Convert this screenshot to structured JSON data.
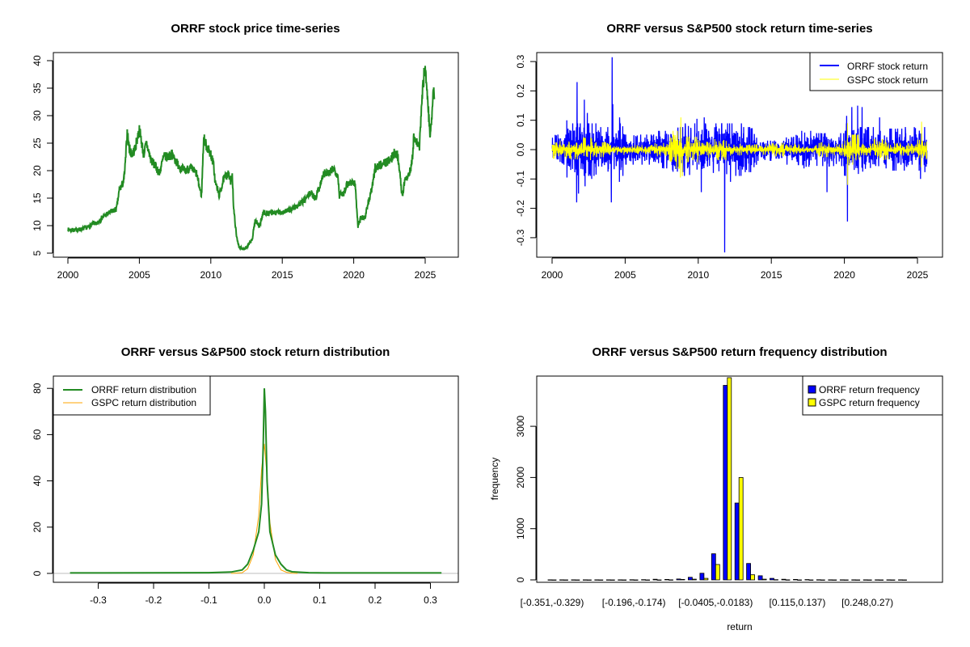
{
  "chart_data": [
    {
      "type": "line",
      "title": "ORRF stock price time-series",
      "xlabel": "",
      "ylabel": "",
      "xlim": [
        2000,
        2025.7
      ],
      "ylim": [
        5,
        40
      ],
      "x_ticks": [
        "2000",
        "2005",
        "2010",
        "2015",
        "2020",
        "2025"
      ],
      "y_ticks": [
        "5",
        "10",
        "15",
        "20",
        "25",
        "30",
        "35",
        "40"
      ],
      "color": "#228B22",
      "grid": false,
      "series": [
        {
          "x": [
            2000.0,
            2000.5,
            2001.0,
            2001.5,
            2001.8,
            2002.0,
            2002.4,
            2002.7,
            2003.0,
            2003.4,
            2003.6,
            2003.9,
            2004.0,
            2004.15,
            2004.3,
            2004.5,
            2004.7,
            2005.0,
            2005.3,
            2005.5,
            2005.8,
            2006.2,
            2006.4,
            2006.7,
            2007.0,
            2007.3,
            2007.6,
            2007.9,
            2008.2,
            2008.5,
            2008.8,
            2009.0,
            2009.2,
            2009.35,
            2009.5,
            2009.7,
            2010.0,
            2010.2,
            2010.3,
            2010.6,
            2010.9,
            2011.2,
            2011.4,
            2011.5,
            2011.6,
            2011.8,
            2012.0,
            2012.3,
            2012.6,
            2012.9,
            2013.1,
            2013.4,
            2013.7,
            2014.0,
            2014.5,
            2015.0,
            2015.5,
            2016.0,
            2016.5,
            2017.0,
            2017.3,
            2017.6,
            2017.9,
            2018.3,
            2018.6,
            2018.9,
            2019.0,
            2019.3,
            2019.5,
            2019.9,
            2020.1,
            2020.3,
            2020.5,
            2020.8,
            2021.0,
            2021.3,
            2021.5,
            2021.8,
            2022.2,
            2022.6,
            2022.9,
            2023.1,
            2023.3,
            2023.4,
            2023.6,
            2023.9,
            2024.1,
            2024.2,
            2024.4,
            2024.6,
            2024.8,
            2025.0,
            2025.15,
            2025.35,
            2025.5,
            2025.6,
            2025.65
          ],
          "y": [
            9.3,
            9.2,
            9.4,
            9.8,
            10.5,
            10.2,
            11.5,
            12.0,
            12.5,
            13.0,
            16.5,
            18.0,
            20.5,
            27.0,
            24.0,
            23.0,
            24.0,
            27.5,
            23.0,
            25.0,
            22.0,
            20.5,
            19.5,
            22.5,
            22.5,
            23.0,
            21.5,
            20.5,
            20.0,
            20.5,
            20.0,
            19.5,
            17.0,
            15.5,
            26.0,
            24.5,
            23.0,
            21.0,
            18.0,
            15.5,
            18.5,
            19.5,
            18.0,
            19.5,
            13.0,
            8.0,
            6.0,
            5.8,
            6.3,
            7.5,
            11.0,
            10.0,
            12.5,
            12.2,
            12.3,
            12.5,
            12.8,
            13.5,
            14.5,
            16.0,
            15.0,
            17.0,
            19.5,
            19.5,
            20.5,
            19.0,
            15.5,
            16.0,
            17.5,
            18.0,
            17.5,
            10.0,
            11.5,
            11.5,
            14.0,
            17.0,
            20.5,
            21.0,
            21.5,
            22.0,
            23.5,
            22.5,
            17.5,
            15.5,
            18.5,
            19.5,
            22.0,
            26.0,
            25.0,
            24.5,
            34.0,
            39.5,
            33.5,
            26.5,
            30.5,
            35.5,
            33.0
          ]
        }
      ]
    },
    {
      "type": "line",
      "title": "ORRF versus S&P500 stock return time-series",
      "xlim": [
        2000,
        2025.7
      ],
      "ylim": [
        -0.35,
        0.32
      ],
      "x_ticks": [
        "2000",
        "2005",
        "2010",
        "2015",
        "2020",
        "2025"
      ],
      "y_ticks": [
        "-0.3",
        "-0.2",
        "-0.1",
        "0.0",
        "0.1",
        "0.2",
        "0.3"
      ],
      "legend": "top-right",
      "grid": false,
      "series": [
        {
          "name": "ORRF stock return",
          "color": "#0000FF",
          "typical_abs_return_by_year": {
            "2000": 0.02,
            "2001": 0.035,
            "2002": 0.035,
            "2003": 0.03,
            "2004": 0.035,
            "2005": 0.02,
            "2006": 0.02,
            "2007": 0.025,
            "2008": 0.03,
            "2009": 0.035,
            "2010": 0.035,
            "2011": 0.035,
            "2012": 0.035,
            "2013": 0.03,
            "2014": 0.015,
            "2015": 0.012,
            "2016": 0.02,
            "2017": 0.025,
            "2018": 0.022,
            "2019": 0.022,
            "2020": 0.035,
            "2021": 0.03,
            "2022": 0.025,
            "2023": 0.028,
            "2024": 0.03,
            "2025": 0.03
          },
          "spikes": [
            [
              2000.2,
              0.05
            ],
            [
              2001.0,
              0.1
            ],
            [
              2001.0,
              -0.095
            ],
            [
              2001.7,
              0.23
            ],
            [
              2001.68,
              -0.18
            ],
            [
              2001.8,
              -0.15
            ],
            [
              2002.2,
              0.17
            ],
            [
              2002.25,
              -0.125
            ],
            [
              2002.4,
              0.125
            ],
            [
              2002.7,
              -0.1
            ],
            [
              2003.0,
              -0.085
            ],
            [
              2004.1,
              0.315
            ],
            [
              2004.05,
              -0.18
            ],
            [
              2004.15,
              0.155
            ],
            [
              2004.6,
              -0.11
            ],
            [
              2004.6,
              0.11
            ],
            [
              2009.9,
              0.105
            ],
            [
              2010.2,
              -0.145
            ],
            [
              2010.4,
              0.11
            ],
            [
              2011.6,
              0.09
            ],
            [
              2011.8,
              -0.35
            ],
            [
              2012.2,
              -0.11
            ],
            [
              2018.8,
              -0.145
            ],
            [
              2020.15,
              0.115
            ],
            [
              2020.2,
              -0.245
            ],
            [
              2020.5,
              0.145
            ],
            [
              2020.9,
              0.15
            ],
            [
              2021.2,
              0.145
            ],
            [
              2022.4,
              0.11
            ],
            [
              2025.2,
              -0.1
            ]
          ]
        },
        {
          "name": "GSPC stock return",
          "color": "#FFFF00",
          "typical_abs_return_by_year": {
            "2000": 0.012,
            "2001": 0.013,
            "2002": 0.016,
            "2003": 0.01,
            "2004": 0.007,
            "2005": 0.006,
            "2006": 0.006,
            "2007": 0.009,
            "2008": 0.025,
            "2009": 0.017,
            "2010": 0.011,
            "2011": 0.014,
            "2012": 0.008,
            "2013": 0.007,
            "2014": 0.007,
            "2015": 0.009,
            "2016": 0.008,
            "2017": 0.004,
            "2018": 0.01,
            "2019": 0.008,
            "2020": 0.02,
            "2021": 0.008,
            "2022": 0.014,
            "2023": 0.009,
            "2024": 0.008,
            "2025": 0.013
          },
          "spikes": [
            [
              2008.8,
              0.11
            ],
            [
              2008.78,
              -0.095
            ],
            [
              2008.9,
              -0.09
            ],
            [
              2020.2,
              0.09
            ],
            [
              2020.22,
              -0.12
            ],
            [
              2025.28,
              0.095
            ],
            [
              2025.25,
              -0.06
            ]
          ]
        }
      ]
    },
    {
      "type": "line",
      "title": "ORRF versus S&P500 stock return distribution",
      "xlim": [
        -0.37,
        0.34
      ],
      "ylim": [
        0,
        80
      ],
      "x_ticks": [
        "-0.3",
        "-0.2",
        "-0.1",
        "0.0",
        "0.1",
        "0.2",
        "0.3"
      ],
      "y_ticks": [
        "0",
        "20",
        "40",
        "60",
        "80"
      ],
      "legend": "top-left",
      "grid": false,
      "series": [
        {
          "name": "ORRF return distribution",
          "color": "#228B22",
          "x": [
            -0.351,
            -0.1,
            -0.06,
            -0.04,
            -0.03,
            -0.02,
            -0.01,
            -0.005,
            -0.002,
            0,
            0.002,
            0.005,
            0.01,
            0.02,
            0.03,
            0.04,
            0.05,
            0.08,
            0.11,
            0.32
          ],
          "y": [
            0.2,
            0.3,
            0.6,
            1.5,
            4,
            10,
            18,
            30,
            55,
            80,
            70,
            40,
            18,
            8,
            4,
            1.5,
            0.7,
            0.3,
            0.2,
            0.2
          ]
        },
        {
          "name": "GSPC return distribution",
          "color": "#FFA500",
          "x": [
            -0.06,
            -0.04,
            -0.03,
            -0.02,
            -0.01,
            -0.005,
            0,
            0.005,
            0.01,
            0.02,
            0.03,
            0.04,
            0.05,
            0.06
          ],
          "y": [
            0,
            0.3,
            2,
            8,
            25,
            45,
            56,
            42,
            22,
            6,
            1.5,
            0.5,
            0.1,
            0
          ]
        }
      ]
    },
    {
      "type": "bar",
      "title": "ORRF versus S&P500 return frequency distribution",
      "xlabel": "return",
      "ylabel": "frequency",
      "ylim": [
        0,
        3950
      ],
      "y_ticks": [
        "0",
        "1000",
        "2000",
        "3000"
      ],
      "x_tick_labels": [
        {
          "bin": 1,
          "label": "[-0.351,-0.329)"
        },
        {
          "bin": 8,
          "label": "[-0.196,-0.174)"
        },
        {
          "bin": 15,
          "label": "[-0.0405,-0.0183)"
        },
        {
          "bin": 22,
          "label": "[0.115,0.137)"
        },
        {
          "bin": 28,
          "label": "[0.248,0.27)"
        }
      ],
      "legend": "top-right",
      "grid": false,
      "series": [
        {
          "name": "ORRF return frequency",
          "color": "#0000FF",
          "values": [
            2,
            2,
            1,
            1,
            1,
            1,
            2,
            3,
            5,
            12,
            10,
            18,
            50,
            130,
            510,
            3800,
            1500,
            320,
            80,
            30,
            12,
            10,
            6,
            3,
            2,
            2,
            1,
            1,
            1,
            1,
            1
          ]
        },
        {
          "name": "GSPC return frequency",
          "color": "#FFFF00",
          "values": [
            0,
            0,
            0,
            0,
            0,
            0,
            0,
            0,
            0,
            0,
            2,
            10,
            15,
            30,
            300,
            3950,
            2000,
            100,
            15,
            5,
            2,
            0,
            0,
            0,
            0,
            0,
            0,
            0,
            0,
            0,
            0
          ]
        }
      ]
    }
  ]
}
